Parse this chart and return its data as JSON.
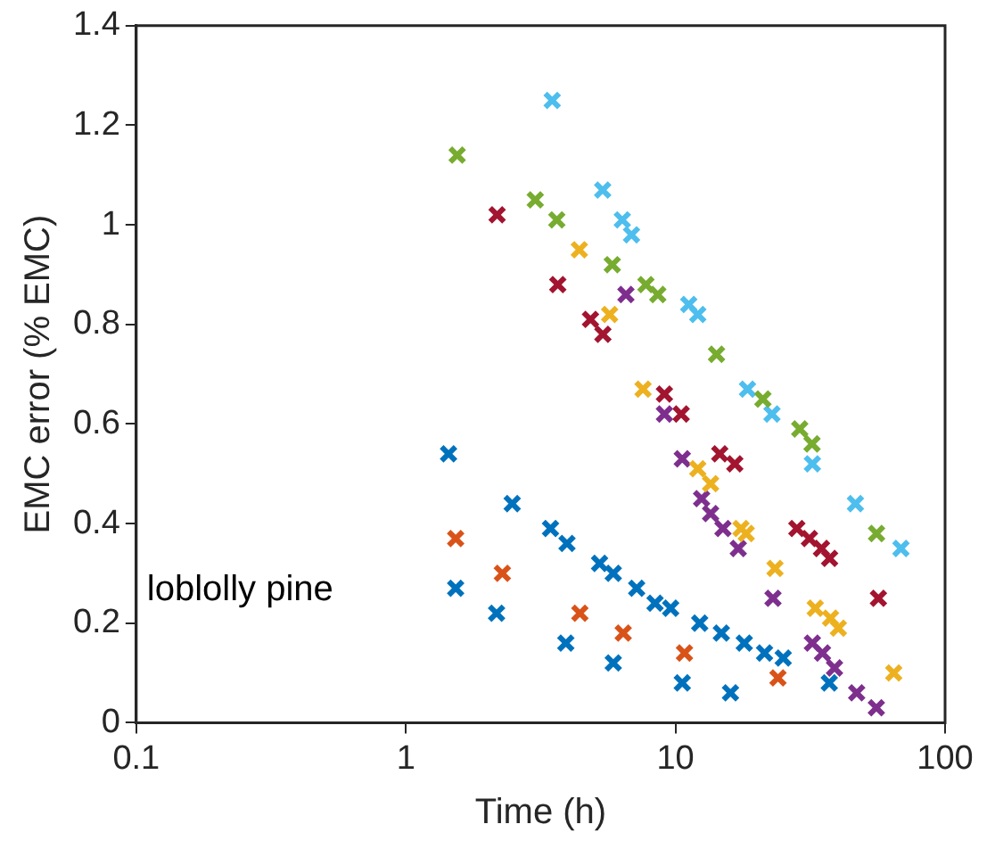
{
  "chart_data": {
    "type": "scatter",
    "xlabel": "Time (h)",
    "ylabel": "EMC error (% EMC)",
    "log": "x",
    "xlim": [
      0.1,
      100
    ],
    "xticks": [
      0.1,
      1,
      10,
      100
    ],
    "ylim": [
      0,
      1.4
    ],
    "yticks": [
      0,
      0.2,
      0.4,
      0.6,
      0.8,
      1,
      1.2,
      1.4
    ],
    "grid": false,
    "legend": false,
    "marker": "cross",
    "annotations": [
      "loblolly pine"
    ],
    "series": [
      {
        "color": "#0072bd",
        "x": [
          1.44,
          1.53,
          2.48,
          3.44,
          3.96,
          5.23,
          5.88,
          7.18,
          8.4,
          9.6,
          12.3,
          14.8,
          18.0,
          21.4,
          25.1,
          2.17,
          3.92,
          5.88,
          10.6,
          16.0,
          37.2
        ],
        "values": [
          0.54,
          0.27,
          0.44,
          0.39,
          0.36,
          0.32,
          0.3,
          0.27,
          0.24,
          0.23,
          0.2,
          0.18,
          0.16,
          0.14,
          0.13,
          0.22,
          0.16,
          0.12,
          0.08,
          0.06,
          0.08
        ]
      },
      {
        "color": "#d95319",
        "x": [
          1.53,
          2.28,
          4.42,
          6.4,
          10.8,
          24.0
        ],
        "values": [
          0.37,
          0.3,
          0.22,
          0.18,
          0.14,
          0.09
        ]
      },
      {
        "color": "#edb120",
        "x": [
          4.4,
          5.7,
          7.58,
          12.1,
          13.5,
          17.5,
          18.3,
          23.4,
          33,
          37.6,
          40.2,
          64.5
        ],
        "values": [
          0.95,
          0.82,
          0.67,
          0.51,
          0.48,
          0.39,
          0.38,
          0.31,
          0.23,
          0.21,
          0.19,
          0.1
        ]
      },
      {
        "color": "#7e2f8e",
        "x": [
          6.55,
          9.1,
          10.6,
          12.5,
          13.5,
          15.0,
          17.1,
          23.0,
          32.2,
          35.1,
          38.9,
          47,
          55.6
        ],
        "values": [
          0.86,
          0.62,
          0.53,
          0.45,
          0.42,
          0.39,
          0.35,
          0.25,
          0.16,
          0.14,
          0.11,
          0.06,
          0.03
        ]
      },
      {
        "color": "#a2142f",
        "x": [
          2.18,
          3.66,
          4.84,
          5.38,
          9.1,
          10.5,
          14.6,
          16.6,
          28.2,
          31.4,
          34.8,
          37.3,
          56.6
        ],
        "values": [
          1.02,
          0.88,
          0.81,
          0.78,
          0.66,
          0.62,
          0.54,
          0.52,
          0.39,
          0.37,
          0.35,
          0.33,
          0.25
        ]
      },
      {
        "color": "#77ac30",
        "x": [
          1.55,
          3.02,
          3.63,
          5.83,
          7.77,
          8.6,
          14.2,
          21.1,
          28.9,
          32.1,
          55.7
        ],
        "values": [
          1.14,
          1.05,
          1.01,
          0.92,
          0.88,
          0.86,
          0.74,
          0.65,
          0.59,
          0.56,
          0.38
        ]
      },
      {
        "color": "#4dbeee",
        "x": [
          3.49,
          5.37,
          6.35,
          6.87,
          11.2,
          12.1,
          18.5,
          22.8,
          32.2,
          46.5,
          68.6
        ],
        "values": [
          1.25,
          1.07,
          1.01,
          0.98,
          0.84,
          0.82,
          0.67,
          0.62,
          0.52,
          0.44,
          0.35
        ]
      }
    ]
  }
}
